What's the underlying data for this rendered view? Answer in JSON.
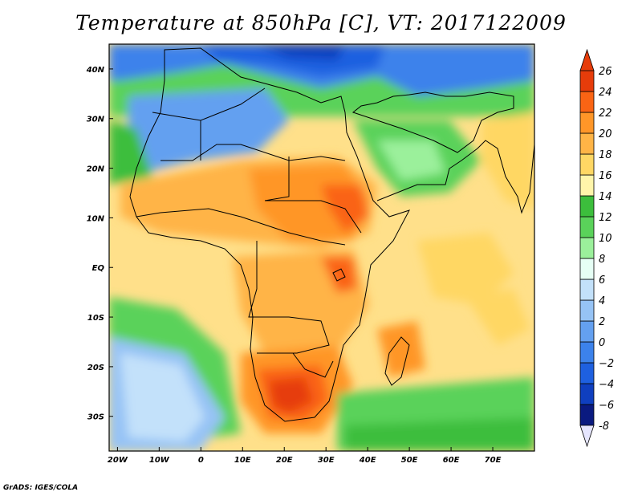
{
  "title": "Temperature at 850hPa [C], VT: 2017122009",
  "credit": "GrADS: IGES/COLA",
  "map": {
    "lon_range": [
      -22,
      80
    ],
    "lat_range": [
      -37,
      45
    ],
    "lon_ticks": [
      {
        "value": -20,
        "label": "20W"
      },
      {
        "value": -10,
        "label": "10W"
      },
      {
        "value": 0,
        "label": "0"
      },
      {
        "value": 10,
        "label": "10E"
      },
      {
        "value": 20,
        "label": "20E"
      },
      {
        "value": 30,
        "label": "30E"
      },
      {
        "value": 40,
        "label": "40E"
      },
      {
        "value": 50,
        "label": "50E"
      },
      {
        "value": 60,
        "label": "60E"
      },
      {
        "value": 70,
        "label": "70E"
      }
    ],
    "lat_ticks": [
      {
        "value": 40,
        "label": "40N"
      },
      {
        "value": 30,
        "label": "30N"
      },
      {
        "value": 20,
        "label": "20N"
      },
      {
        "value": 10,
        "label": "10N"
      },
      {
        "value": 0,
        "label": "EQ"
      },
      {
        "value": -10,
        "label": "10S"
      },
      {
        "value": -20,
        "label": "20S"
      },
      {
        "value": -30,
        "label": "30S"
      }
    ]
  },
  "colorbar": {
    "levels": [
      -8,
      -6,
      -4,
      -2,
      0,
      2,
      4,
      6,
      8,
      10,
      12,
      14,
      16,
      18,
      20,
      22,
      24,
      26
    ],
    "labels": [
      "-8",
      "−6",
      "−4",
      "−2",
      "0",
      "2",
      "4",
      "6",
      "8",
      "10",
      "12",
      "14",
      "16",
      "18",
      "20",
      "22",
      "24",
      "26"
    ],
    "colors": [
      "#0a1a80",
      "#0f3fbf",
      "#1e60e0",
      "#3c82eb",
      "#64a0f0",
      "#96c3f5",
      "#c3e1fa",
      "#e6fff5",
      "#9bf09b",
      "#5ad25a",
      "#3cbe3c",
      "#fff5aa",
      "#ffd764",
      "#ffb446",
      "#ff9628",
      "#fa6414",
      "#e63c0a"
    ],
    "low_cap_color": "#e6e6ff",
    "high_cap_color": "#e63c0a"
  }
}
